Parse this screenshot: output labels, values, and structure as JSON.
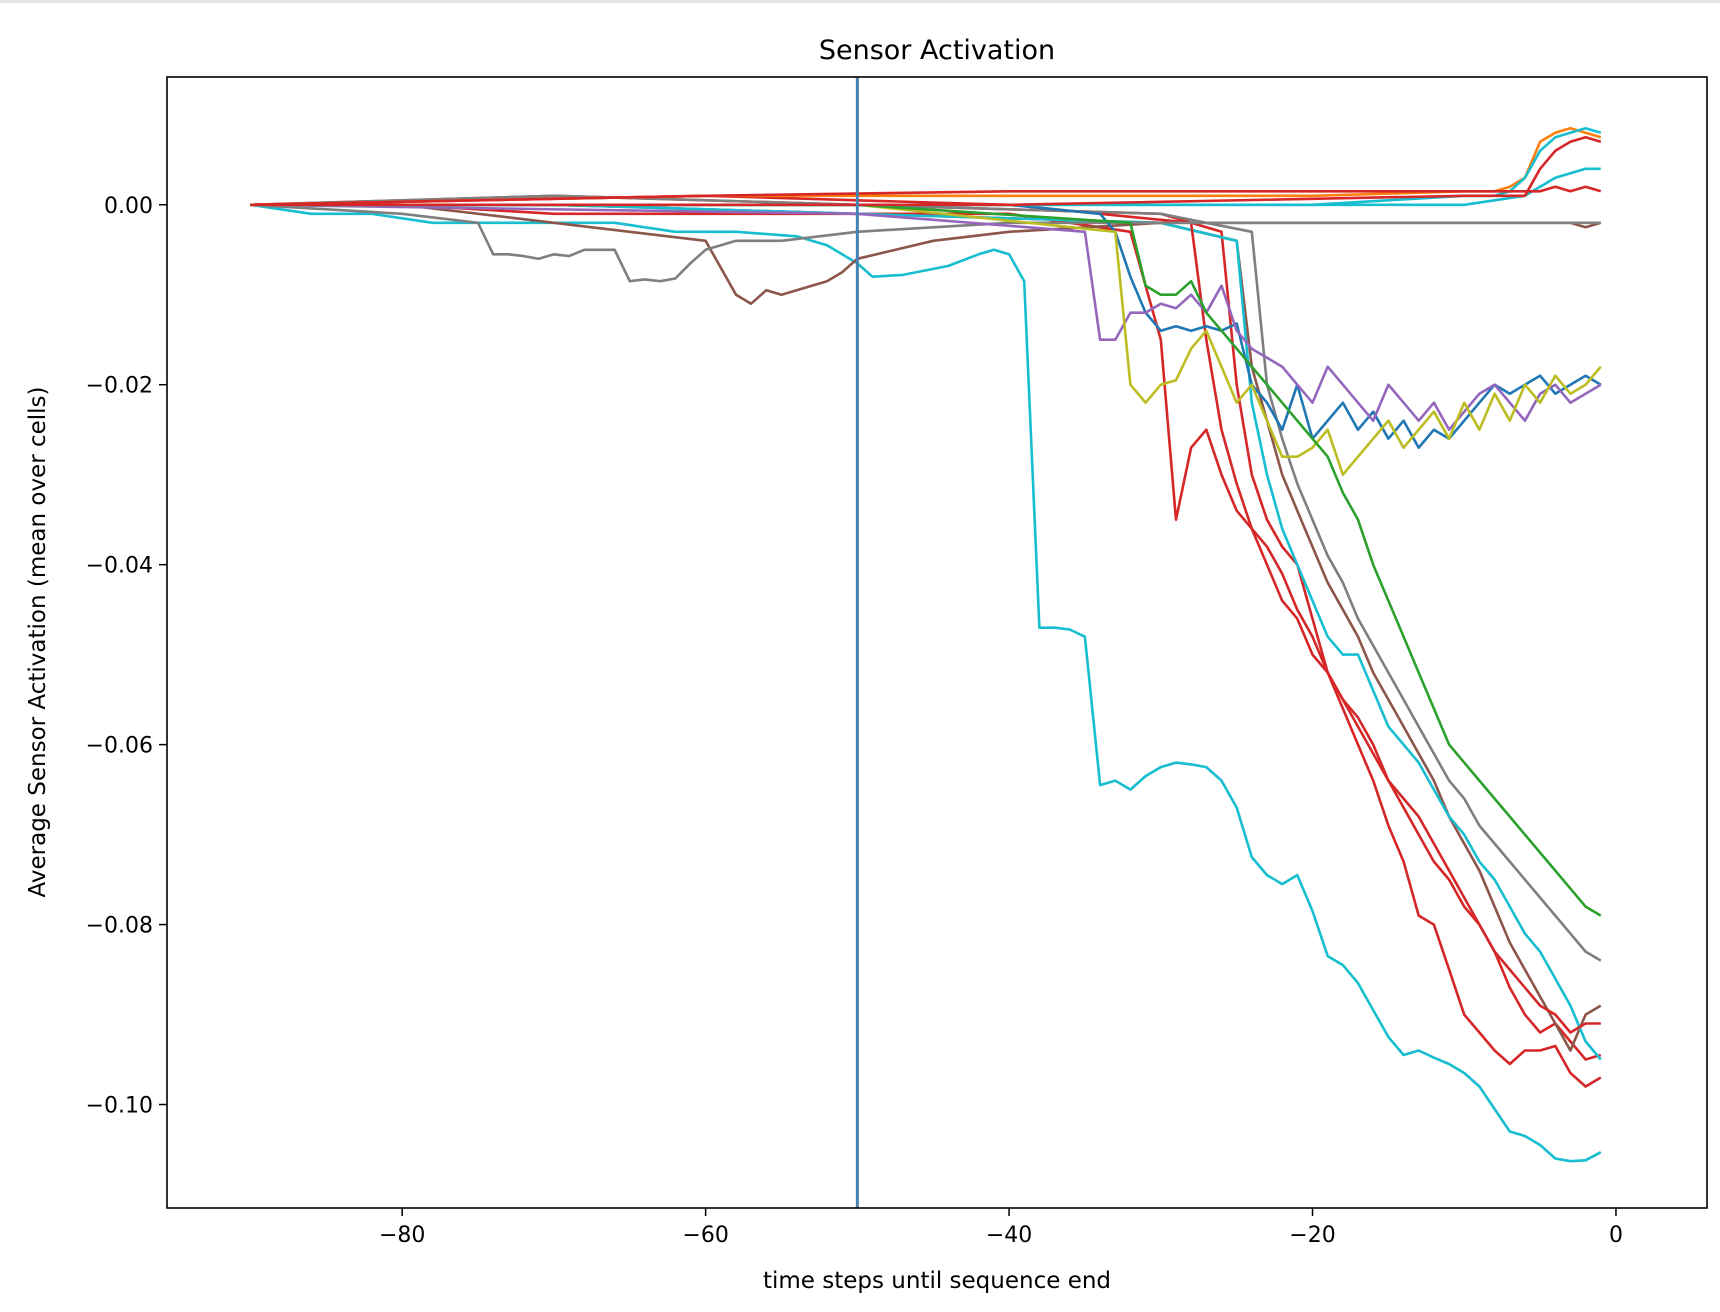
{
  "chart_data": {
    "type": "line",
    "title": "Sensor Activation",
    "xlabel": "time steps until sequence end",
    "ylabel": "Average Sensor Activation (mean over cells)",
    "xlim": [
      -95.5,
      6
    ],
    "ylim": [
      -0.1115,
      0.0142
    ],
    "xticks": [
      -80,
      -60,
      -40,
      -20,
      0
    ],
    "xtick_labels": [
      "−80",
      "−60",
      "−40",
      "−20",
      "0"
    ],
    "yticks": [
      0.0,
      -0.02,
      -0.04,
      -0.06,
      -0.08,
      -0.1
    ],
    "ytick_labels": [
      "0.00",
      "−0.02",
      "−0.04",
      "−0.06",
      "−0.08",
      "−0.10"
    ],
    "grid": false,
    "legend": "none",
    "vline": {
      "x": -50,
      "color": "#4682b4"
    },
    "palette": [
      "#1f77b4",
      "#ff7f0e",
      "#2ca02c",
      "#d62728",
      "#9467bd",
      "#8c564b",
      "#e377c2",
      "#7f7f7f",
      "#bcbd22",
      "#17becf"
    ],
    "series": [
      {
        "color": "#17becf",
        "x": [
          -90,
          -86,
          -82,
          -78,
          -74,
          -70,
          -66,
          -62,
          -58,
          -54,
          -52,
          -50,
          -49,
          -47,
          -44,
          -42,
          -41,
          -40,
          -39,
          -38,
          -37,
          -36,
          -35,
          -34,
          -33,
          -32,
          -31,
          -30,
          -29,
          -28,
          -27,
          -26,
          -25,
          -24,
          -23,
          -22,
          -21,
          -20,
          -19,
          -18,
          -17,
          -16,
          -15,
          -14,
          -13,
          -12,
          -11,
          -10,
          -9,
          -8,
          -7,
          -6,
          -5,
          -4,
          -3,
          -2,
          -1
        ],
        "y": [
          0.0,
          -0.001,
          -0.001,
          -0.002,
          -0.002,
          -0.002,
          -0.002,
          -0.003,
          -0.003,
          -0.0035,
          -0.0045,
          -0.0065,
          -0.008,
          -0.0078,
          -0.0068,
          -0.0055,
          -0.005,
          -0.0055,
          -0.0085,
          -0.047,
          -0.047,
          -0.0472,
          -0.048,
          -0.0645,
          -0.064,
          -0.065,
          -0.0635,
          -0.0625,
          -0.062,
          -0.0622,
          -0.0625,
          -0.064,
          -0.067,
          -0.0725,
          -0.0745,
          -0.0755,
          -0.0745,
          -0.0785,
          -0.0835,
          -0.0845,
          -0.0865,
          -0.0895,
          -0.0925,
          -0.0945,
          -0.094,
          -0.0948,
          -0.0955,
          -0.0965,
          -0.098,
          -0.1005,
          -0.103,
          -0.1035,
          -0.1045,
          -0.106,
          -0.1063,
          -0.1062,
          -0.1053
        ]
      },
      {
        "color": "#d62728",
        "x": [
          -90,
          -80,
          -70,
          -60,
          -50,
          -40,
          -32,
          -30,
          -29,
          -28,
          -27,
          -26,
          -25,
          -24,
          -23,
          -22,
          -21,
          -20,
          -19,
          -18,
          -17,
          -16,
          -15,
          -14,
          -13,
          -12,
          -11,
          -10,
          -9,
          -8,
          -7,
          -6,
          -5,
          -4,
          -3,
          -2,
          -1
        ],
        "y": [
          0.0,
          0.0,
          -0.001,
          -0.001,
          -0.001,
          -0.001,
          -0.003,
          -0.015,
          -0.035,
          -0.027,
          -0.025,
          -0.03,
          -0.034,
          -0.036,
          -0.04,
          -0.044,
          -0.046,
          -0.05,
          -0.052,
          -0.056,
          -0.06,
          -0.064,
          -0.069,
          -0.073,
          -0.079,
          -0.08,
          -0.085,
          -0.09,
          -0.092,
          -0.094,
          -0.0955,
          -0.094,
          -0.094,
          -0.0935,
          -0.0965,
          -0.098,
          -0.097
        ]
      },
      {
        "color": "#d62728",
        "x": [
          -90,
          -70,
          -50,
          -30,
          -26,
          -25,
          -24,
          -23,
          -22,
          -21,
          -20,
          -19,
          -18,
          -17,
          -16,
          -15,
          -14,
          -13,
          -12,
          -11,
          -10,
          -9,
          -8,
          -7,
          -6,
          -5,
          -4,
          -3,
          -2,
          -1
        ],
        "y": [
          0.0,
          0.001,
          0.0,
          -0.001,
          -0.003,
          -0.02,
          -0.03,
          -0.035,
          -0.038,
          -0.04,
          -0.046,
          -0.052,
          -0.055,
          -0.057,
          -0.06,
          -0.064,
          -0.066,
          -0.068,
          -0.071,
          -0.074,
          -0.077,
          -0.08,
          -0.083,
          -0.087,
          -0.09,
          -0.092,
          -0.091,
          -0.093,
          -0.095,
          -0.0945
        ]
      },
      {
        "color": "#8c564b",
        "x": [
          -90,
          -70,
          -50,
          -30,
          -25,
          -24,
          -23,
          -22,
          -21,
          -20,
          -19,
          -18,
          -17,
          -16,
          -15,
          -14,
          -13,
          -12,
          -11,
          -10,
          -9,
          -8,
          -7,
          -6,
          -5,
          -4,
          -3,
          -2,
          -1
        ],
        "y": [
          0.0,
          0.0,
          -0.001,
          -0.002,
          -0.004,
          -0.018,
          -0.024,
          -0.03,
          -0.034,
          -0.038,
          -0.042,
          -0.045,
          -0.048,
          -0.052,
          -0.055,
          -0.058,
          -0.061,
          -0.064,
          -0.068,
          -0.071,
          -0.074,
          -0.078,
          -0.082,
          -0.085,
          -0.088,
          -0.091,
          -0.094,
          -0.09,
          -0.089
        ]
      },
      {
        "color": "#7f7f7f",
        "x": [
          -90,
          -70,
          -50,
          -30,
          -24,
          -23,
          -22,
          -21,
          -20,
          -19,
          -18,
          -17,
          -16,
          -15,
          -14,
          -13,
          -12,
          -11,
          -10,
          -9,
          -8,
          -7,
          -6,
          -5,
          -4,
          -3,
          -2,
          -1
        ],
        "y": [
          0.0,
          0.001,
          0.0,
          -0.001,
          -0.003,
          -0.02,
          -0.026,
          -0.031,
          -0.035,
          -0.039,
          -0.042,
          -0.046,
          -0.049,
          -0.052,
          -0.055,
          -0.058,
          -0.061,
          -0.064,
          -0.066,
          -0.069,
          -0.071,
          -0.073,
          -0.075,
          -0.077,
          -0.079,
          -0.081,
          -0.083,
          -0.084
        ]
      },
      {
        "color": "#17becf",
        "x": [
          -90,
          -70,
          -50,
          -30,
          -25,
          -24,
          -23,
          -22,
          -21,
          -20,
          -19,
          -18,
          -17,
          -16,
          -15,
          -14,
          -13,
          -12,
          -11,
          -10,
          -9,
          -8,
          -7,
          -6,
          -5,
          -4,
          -3,
          -2,
          -1
        ],
        "y": [
          0.0,
          0.0,
          -0.001,
          -0.002,
          -0.004,
          -0.022,
          -0.03,
          -0.036,
          -0.04,
          -0.044,
          -0.048,
          -0.05,
          -0.05,
          -0.054,
          -0.058,
          -0.06,
          -0.062,
          -0.065,
          -0.068,
          -0.07,
          -0.073,
          -0.075,
          -0.078,
          -0.081,
          -0.083,
          -0.086,
          -0.089,
          -0.093,
          -0.095
        ]
      },
      {
        "color": "#d62728",
        "x": [
          -90,
          -60,
          -40,
          -28,
          -27,
          -26,
          -25,
          -24,
          -23,
          -22,
          -21,
          -20,
          -19,
          -18,
          -17,
          -16,
          -15,
          -14,
          -13,
          -12,
          -11,
          -10,
          -9,
          -8,
          -7,
          -6,
          -5,
          -4,
          -3,
          -2,
          -1
        ],
        "y": [
          0.0,
          0.001,
          0.0,
          -0.002,
          -0.015,
          -0.025,
          -0.031,
          -0.036,
          -0.038,
          -0.041,
          -0.045,
          -0.048,
          -0.052,
          -0.055,
          -0.058,
          -0.061,
          -0.064,
          -0.067,
          -0.07,
          -0.073,
          -0.075,
          -0.078,
          -0.08,
          -0.083,
          -0.085,
          -0.087,
          -0.089,
          -0.09,
          -0.092,
          -0.091,
          -0.091
        ]
      },
      {
        "color": "#8c564b",
        "x": [
          -90,
          -80,
          -70,
          -60,
          -58,
          -57,
          -56,
          -55,
          -54,
          -53,
          -52,
          -51,
          -50,
          -45,
          -40,
          -30,
          -20,
          -10,
          -5,
          -3,
          -2,
          -1
        ],
        "y": [
          0.0,
          0.0,
          -0.002,
          -0.004,
          -0.01,
          -0.011,
          -0.0095,
          -0.01,
          -0.0095,
          -0.009,
          -0.0085,
          -0.0075,
          -0.006,
          -0.004,
          -0.003,
          -0.002,
          -0.002,
          -0.002,
          -0.002,
          -0.002,
          -0.0025,
          -0.002
        ]
      },
      {
        "color": "#7f7f7f",
        "x": [
          -90,
          -80,
          -75,
          -74,
          -73,
          -72,
          -71,
          -70,
          -69,
          -68,
          -66,
          -65,
          -64,
          -63,
          -62,
          -61,
          -60,
          -58,
          -55,
          -50,
          -40,
          -30,
          -20,
          -10,
          -1
        ],
        "y": [
          0.0,
          -0.001,
          -0.002,
          -0.0055,
          -0.0055,
          -0.0057,
          -0.006,
          -0.0055,
          -0.0057,
          -0.005,
          -0.005,
          -0.0085,
          -0.0083,
          -0.0085,
          -0.0082,
          -0.0065,
          -0.005,
          -0.004,
          -0.004,
          -0.003,
          -0.002,
          -0.002,
          -0.002,
          -0.002,
          -0.002
        ]
      },
      {
        "color": "#1f77b4",
        "x": [
          -90,
          -60,
          -40,
          -34,
          -33,
          -32,
          -31,
          -30,
          -29,
          -28,
          -27,
          -26,
          -25,
          -24,
          -23,
          -22,
          -21,
          -20,
          -19,
          -18,
          -17,
          -16,
          -15,
          -14,
          -13,
          -12,
          -11,
          -10,
          -9,
          -8,
          -7,
          -6,
          -5,
          -4,
          -3,
          -2,
          -1
        ],
        "y": [
          0.0,
          0.0,
          0.0,
          -0.001,
          -0.003,
          -0.008,
          -0.012,
          -0.014,
          -0.0135,
          -0.014,
          -0.0135,
          -0.014,
          -0.0132,
          -0.02,
          -0.022,
          -0.025,
          -0.02,
          -0.026,
          -0.024,
          -0.022,
          -0.025,
          -0.023,
          -0.026,
          -0.024,
          -0.027,
          -0.025,
          -0.026,
          -0.024,
          -0.022,
          -0.02,
          -0.021,
          -0.02,
          -0.019,
          -0.021,
          -0.02,
          -0.019,
          -0.02
        ]
      },
      {
        "color": "#9467bd",
        "x": [
          -90,
          -50,
          -35,
          -34,
          -33,
          -32,
          -31,
          -30,
          -29,
          -28,
          -27,
          -26,
          -25,
          -24,
          -23,
          -22,
          -21,
          -20,
          -19,
          -18,
          -17,
          -16,
          -15,
          -14,
          -13,
          -12,
          -11,
          -10,
          -9,
          -8,
          -7,
          -6,
          -5,
          -4,
          -3,
          -2,
          -1
        ],
        "y": [
          0.0,
          -0.001,
          -0.003,
          -0.015,
          -0.015,
          -0.012,
          -0.012,
          -0.011,
          -0.0115,
          -0.01,
          -0.012,
          -0.009,
          -0.014,
          -0.016,
          -0.017,
          -0.018,
          -0.02,
          -0.022,
          -0.018,
          -0.02,
          -0.022,
          -0.024,
          -0.02,
          -0.022,
          -0.024,
          -0.022,
          -0.025,
          -0.023,
          -0.021,
          -0.02,
          -0.022,
          -0.024,
          -0.021,
          -0.02,
          -0.022,
          -0.021,
          -0.02
        ]
      },
      {
        "color": "#bcbd22",
        "x": [
          -90,
          -50,
          -33,
          -32,
          -31,
          -30,
          -29,
          -28,
          -27,
          -26,
          -25,
          -24,
          -23,
          -22,
          -21,
          -20,
          -19,
          -18,
          -17,
          -16,
          -15,
          -14,
          -13,
          -12,
          -11,
          -10,
          -9,
          -8,
          -7,
          -6,
          -5,
          -4,
          -3,
          -2,
          -1
        ],
        "y": [
          0.0,
          0.0,
          -0.003,
          -0.02,
          -0.022,
          -0.02,
          -0.0195,
          -0.016,
          -0.014,
          -0.018,
          -0.022,
          -0.02,
          -0.024,
          -0.028,
          -0.028,
          -0.027,
          -0.025,
          -0.03,
          -0.028,
          -0.026,
          -0.024,
          -0.027,
          -0.025,
          -0.023,
          -0.026,
          -0.022,
          -0.025,
          -0.021,
          -0.024,
          -0.02,
          -0.022,
          -0.019,
          -0.021,
          -0.02,
          -0.018
        ]
      },
      {
        "color": "#2ca02c",
        "x": [
          -90,
          -50,
          -32,
          -31,
          -30,
          -29,
          -28,
          -27,
          -26,
          -25,
          -24,
          -23,
          -22,
          -21,
          -20,
          -19,
          -18,
          -17,
          -16,
          -15,
          -14,
          -13,
          -12,
          -11,
          -10,
          -9,
          -8,
          -7,
          -6,
          -5,
          -4,
          -3,
          -2,
          -1
        ],
        "y": [
          0.0,
          0.0,
          -0.002,
          -0.009,
          -0.01,
          -0.01,
          -0.0085,
          -0.012,
          -0.014,
          -0.016,
          -0.018,
          -0.02,
          -0.022,
          -0.024,
          -0.026,
          -0.028,
          -0.032,
          -0.035,
          -0.04,
          -0.044,
          -0.048,
          -0.052,
          -0.056,
          -0.06,
          -0.062,
          -0.064,
          -0.066,
          -0.068,
          -0.07,
          -0.072,
          -0.074,
          -0.076,
          -0.078,
          -0.079
        ]
      },
      {
        "color": "#ff7f0e",
        "x": [
          -90,
          -60,
          -40,
          -20,
          -10,
          -8,
          -7,
          -6,
          -5,
          -4,
          -3,
          -2,
          -1
        ],
        "y": [
          0.0,
          0.001,
          0.001,
          0.001,
          0.0015,
          0.0015,
          0.002,
          0.003,
          0.007,
          0.008,
          0.0085,
          0.008,
          0.0075
        ]
      },
      {
        "color": "#17becf",
        "x": [
          -90,
          -60,
          -40,
          -20,
          -10,
          -8,
          -7,
          -6,
          -5,
          -4,
          -3,
          -2,
          -1
        ],
        "y": [
          0.0,
          0.0,
          0.0,
          0.0,
          0.001,
          0.001,
          0.0015,
          0.003,
          0.006,
          0.0075,
          0.008,
          0.0085,
          0.008
        ]
      },
      {
        "color": "#17becf",
        "x": [
          -90,
          -40,
          -20,
          -10,
          -6,
          -5,
          -4,
          -3,
          -2,
          -1
        ],
        "y": [
          0.0,
          0.0,
          0.0,
          0.0,
          0.001,
          0.002,
          0.003,
          0.0035,
          0.004,
          0.004
        ]
      },
      {
        "color": "#d62728",
        "x": [
          -90,
          -40,
          -10,
          -6,
          -5,
          -4,
          -3,
          -2,
          -1
        ],
        "y": [
          0.0,
          0.0,
          0.001,
          0.001,
          0.004,
          0.006,
          0.007,
          0.0075,
          0.007
        ]
      },
      {
        "color": "#d62728",
        "x": [
          -90,
          -60,
          -40,
          -20,
          -10,
          -5,
          -4,
          -3,
          -2,
          -1
        ],
        "y": [
          0.0,
          0.001,
          0.0015,
          0.0015,
          0.0015,
          0.0015,
          0.002,
          0.0015,
          0.002,
          0.0015
        ]
      }
    ]
  }
}
